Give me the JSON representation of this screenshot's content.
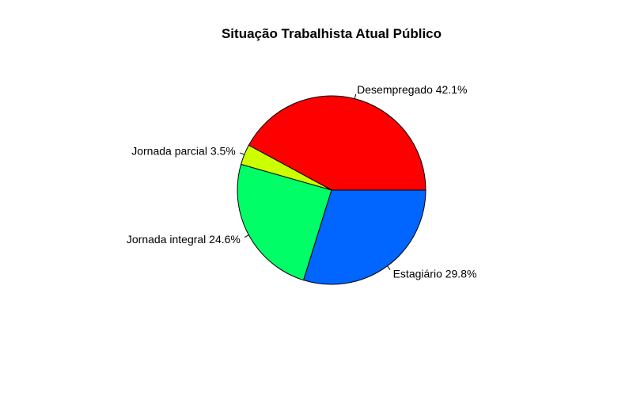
{
  "chart_data": {
    "type": "pie",
    "title": "Situação Trabalhista Atual Público",
    "direction": "counterclockwise",
    "start": "3 o'clock",
    "slices": [
      {
        "label": "Desempregado 42.1%",
        "value": 42.1,
        "color": "#FF0000"
      },
      {
        "label": "Jornada parcial 3.5%",
        "value": 3.5,
        "color": "#CCFF00"
      },
      {
        "label": "Jornada integral 24.6%",
        "value": 24.6,
        "color": "#00FF66"
      },
      {
        "label": "Estagiário 29.8%",
        "value": 29.8,
        "color": "#0066FF"
      }
    ]
  }
}
